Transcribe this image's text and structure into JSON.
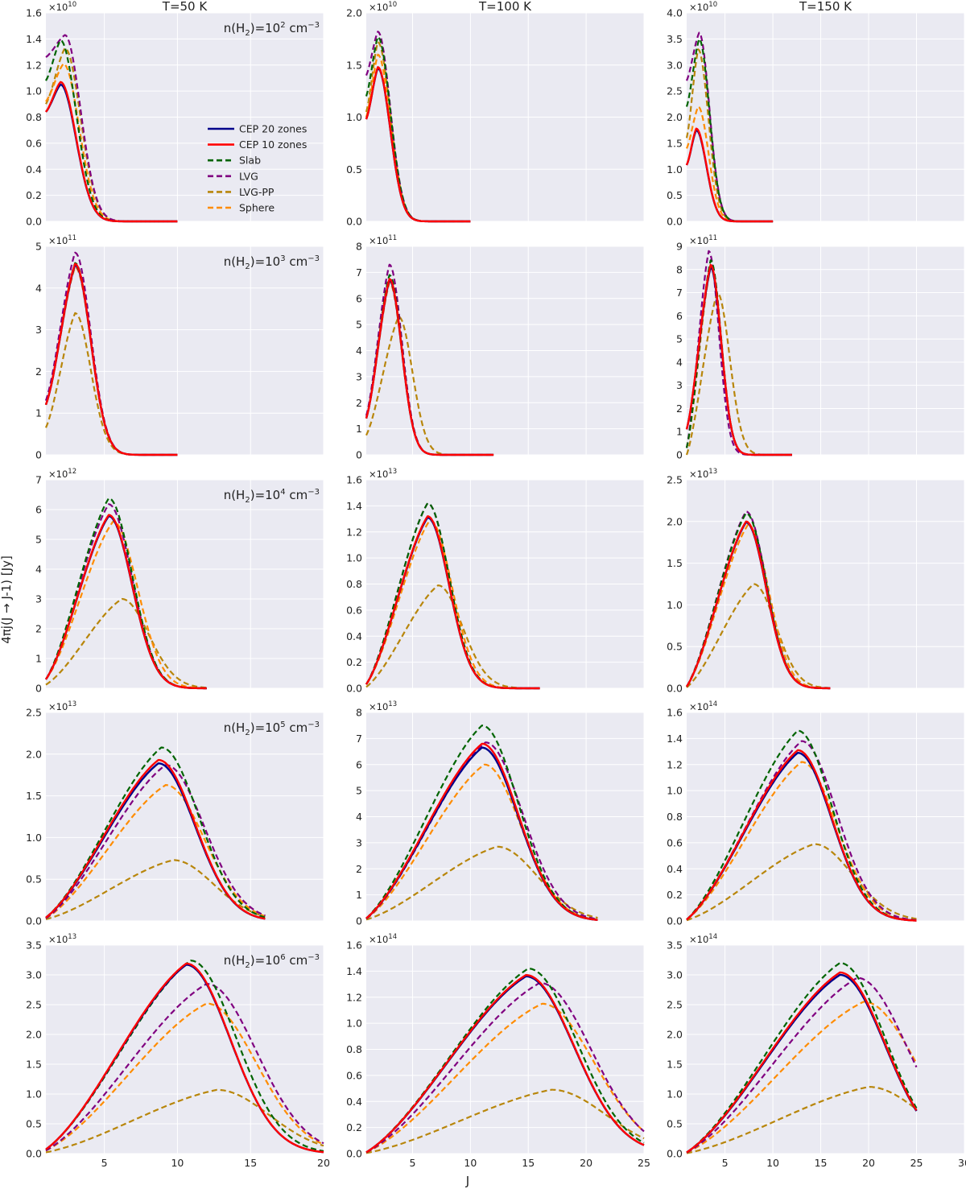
{
  "chart_data": {
    "type": "line",
    "figure": {
      "xlabel": "J",
      "ylabel": "4πj(J → J-1) [Jy]",
      "columns": [
        {
          "title": "T=50 K",
          "xlim": [
            1,
            20
          ],
          "xticks": [
            5,
            10,
            15,
            20
          ]
        },
        {
          "title": "T=100 K",
          "xlim": [
            1,
            25
          ],
          "xticks": [
            5,
            10,
            15,
            20,
            25
          ]
        },
        {
          "title": "T=150 K",
          "xlim": [
            1,
            30
          ],
          "xticks": [
            5,
            10,
            15,
            20,
            25,
            30
          ]
        }
      ],
      "rows": [
        {
          "annotation": {
            "prefix": "n(H",
            "sub": "2",
            "mid": ")=10",
            "sup": "2",
            "unit": " cm",
            "unit_sup": "−3"
          }
        },
        {
          "annotation": {
            "prefix": "n(H",
            "sub": "2",
            "mid": ")=10",
            "sup": "3",
            "unit": " cm",
            "unit_sup": "−3"
          }
        },
        {
          "annotation": {
            "prefix": "n(H",
            "sub": "2",
            "mid": ")=10",
            "sup": "4",
            "unit": " cm",
            "unit_sup": "−3"
          }
        },
        {
          "annotation": {
            "prefix": "n(H",
            "sub": "2",
            "mid": ")=10",
            "sup": "5",
            "unit": " cm",
            "unit_sup": "−3"
          }
        },
        {
          "annotation": {
            "prefix": "n(H",
            "sub": "2",
            "mid": ")=10",
            "sup": "6",
            "unit": " cm",
            "unit_sup": "−3"
          }
        }
      ],
      "legend": {
        "placement": "upper-right of top-left panel",
        "entries": [
          {
            "label": "CEP 20 zones",
            "color": "#00008b",
            "dash": false
          },
          {
            "label": "CEP 10 zones",
            "color": "#ff0000",
            "dash": false
          },
          {
            "label": "Slab",
            "color": "#006400",
            "dash": true
          },
          {
            "label": "LVG",
            "color": "#800080",
            "dash": true
          },
          {
            "label": "LVG-PP",
            "color": "#b8860b",
            "dash": true
          },
          {
            "label": "Sphere",
            "color": "#ff8c00",
            "dash": true
          }
        ]
      },
      "colors": {
        "panel_bg": "#eaeaf2",
        "grid": "#ffffff"
      }
    },
    "panels": [
      {
        "row": 0,
        "col": 0,
        "exponent": "10",
        "ylim": [
          0,
          1.6
        ],
        "yticks": [
          "0.0",
          "0.2",
          "0.4",
          "0.6",
          "0.8",
          "1.0",
          "1.2",
          "1.4",
          "1.6"
        ],
        "xmax": 10,
        "peaks": {
          "cep20": [
            2,
            1.05
          ],
          "cep10": [
            2,
            1.07
          ],
          "slab": [
            2,
            1.39
          ],
          "lvg": [
            2.3,
            1.43
          ],
          "lvgpp": [
            2.3,
            1.33
          ],
          "sphere": [
            2.2,
            1.21
          ]
        },
        "y1": {
          "cep20": 0.84,
          "cep10": 0.84,
          "slab": 1.08,
          "lvg": 1.26,
          "lvgpp": 0.9,
          "sphere": 0.92
        }
      },
      {
        "row": 0,
        "col": 1,
        "exponent": "10",
        "ylim": [
          0,
          2.0
        ],
        "yticks": [
          "0.0",
          "0.5",
          "1.0",
          "1.5",
          "2.0"
        ],
        "xmax": 10,
        "peaks": {
          "cep20": [
            2,
            1.47
          ],
          "cep10": [
            2,
            1.48
          ],
          "slab": [
            2,
            1.77
          ],
          "lvg": [
            2,
            1.82
          ],
          "lvgpp": [
            2,
            1.72
          ],
          "sphere": [
            2,
            1.6
          ]
        },
        "y1": {
          "cep20": 0.98,
          "cep10": 0.98,
          "slab": 1.2,
          "lvg": 1.4,
          "lvgpp": 1.05,
          "sphere": 1.0
        }
      },
      {
        "row": 0,
        "col": 2,
        "exponent": "10",
        "ylim": [
          0,
          4.0
        ],
        "yticks": [
          "0.0",
          "0.5",
          "1.0",
          "1.5",
          "2.0",
          "2.5",
          "3.0",
          "3.5",
          "4.0"
        ],
        "xmax": 10,
        "peaks": {
          "cep20": [
            2,
            1.75
          ],
          "cep10": [
            2,
            1.78
          ],
          "slab": [
            2.3,
            3.5
          ],
          "lvg": [
            2.3,
            3.62
          ],
          "lvgpp": [
            2.2,
            3.3
          ],
          "sphere": [
            2.2,
            2.2
          ]
        },
        "y1": {
          "cep20": 1.08,
          "cep10": 1.08,
          "slab": 2.2,
          "lvg": 2.7,
          "lvgpp": 1.6,
          "sphere": 1.4
        }
      },
      {
        "row": 1,
        "col": 0,
        "exponent": "11",
        "ylim": [
          0,
          5
        ],
        "yticks": [
          "0",
          "1",
          "2",
          "3",
          "4",
          "5"
        ],
        "xmax": 10,
        "peaks": {
          "cep20": [
            3,
            4.55
          ],
          "cep10": [
            3,
            4.58
          ],
          "slab": [
            3,
            4.6
          ],
          "lvg": [
            3,
            4.85
          ],
          "lvgpp": [
            3,
            3.4
          ],
          "sphere": [
            3,
            4.5
          ]
        },
        "y1": {
          "cep20": 1.2,
          "cep10": 1.2,
          "slab": 1.2,
          "lvg": 1.3,
          "lvgpp": 0.65,
          "sphere": 1.2
        }
      },
      {
        "row": 1,
        "col": 1,
        "exponent": "11",
        "ylim": [
          0,
          8
        ],
        "yticks": [
          "0",
          "1",
          "2",
          "3",
          "4",
          "5",
          "6",
          "7",
          "8"
        ],
        "xmax": 12,
        "peaks": {
          "cep20": [
            3,
            6.7
          ],
          "cep10": [
            3,
            6.75
          ],
          "slab": [
            3,
            6.9
          ],
          "lvg": [
            3,
            7.3
          ],
          "lvgpp": [
            3.8,
            5.3
          ],
          "sphere": [
            3,
            6.6
          ]
        },
        "y1": {
          "cep20": 1.4,
          "cep10": 1.4,
          "slab": 1.4,
          "lvg": 1.5,
          "lvgpp": 0.75,
          "sphere": 1.4
        }
      },
      {
        "row": 1,
        "col": 2,
        "exponent": "11",
        "ylim": [
          0,
          9
        ],
        "yticks": [
          "0",
          "1",
          "2",
          "3",
          "4",
          "5",
          "6",
          "7",
          "8",
          "9"
        ],
        "xmax": 12,
        "peaks": {
          "cep20": [
            3.5,
            8.1
          ],
          "cep10": [
            3.5,
            8.2
          ],
          "slab": [
            3.5,
            8.4
          ],
          "lvg": [
            3.3,
            8.8
          ],
          "lvgpp": [
            4.2,
            7.0
          ],
          "sphere": [
            3.5,
            8.1
          ]
        },
        "y1": {
          "cep20": 1.1,
          "cep10": 1.1,
          "slab": 0.3,
          "lvg": 0.3,
          "lvgpp": 0.0,
          "sphere": 0.3
        }
      },
      {
        "row": 2,
        "col": 0,
        "exponent": "12",
        "ylim": [
          0,
          7
        ],
        "yticks": [
          "0",
          "1",
          "2",
          "3",
          "4",
          "5",
          "6",
          "7"
        ],
        "xmax": 12,
        "peaks": {
          "cep20": [
            5.3,
            5.78
          ],
          "cep10": [
            5.3,
            5.82
          ],
          "slab": [
            5.3,
            6.38
          ],
          "lvg": [
            5.3,
            6.18
          ],
          "lvgpp": [
            6.2,
            3.0
          ],
          "sphere": [
            5.6,
            5.6
          ]
        },
        "y1": {
          "cep20": 0.3,
          "cep10": 0.3,
          "slab": 0.3,
          "lvg": 0.3,
          "lvgpp": 0.12,
          "sphere": 0.3
        }
      },
      {
        "row": 2,
        "col": 1,
        "exponent": "13",
        "ylim": [
          0,
          1.6
        ],
        "yticks": [
          "0.0",
          "0.2",
          "0.4",
          "0.6",
          "0.8",
          "1.0",
          "1.2",
          "1.4",
          "1.6"
        ],
        "xmax": 16,
        "peaks": {
          "cep20": [
            6.3,
            1.31
          ],
          "cep10": [
            6.3,
            1.32
          ],
          "slab": [
            6.3,
            1.42
          ],
          "lvg": [
            6.3,
            1.42
          ],
          "lvgpp": [
            7.2,
            0.79
          ],
          "sphere": [
            6.5,
            1.29
          ]
        },
        "y1": {
          "cep20": 0.03,
          "cep10": 0.03,
          "slab": 0.03,
          "lvg": 0.03,
          "lvgpp": 0.01,
          "sphere": 0.03
        }
      },
      {
        "row": 2,
        "col": 2,
        "exponent": "13",
        "ylim": [
          0,
          2.5
        ],
        "yticks": [
          "0.0",
          "0.5",
          "1.0",
          "1.5",
          "2.0",
          "2.5"
        ],
        "xmax": 16,
        "peaks": {
          "cep20": [
            7.2,
            1.99
          ],
          "cep10": [
            7.2,
            2.0
          ],
          "slab": [
            7.2,
            2.1
          ],
          "lvg": [
            7.2,
            2.12
          ],
          "lvgpp": [
            8,
            1.25
          ],
          "sphere": [
            7.4,
            1.96
          ]
        },
        "y1": {
          "cep20": 0.02,
          "cep10": 0.02,
          "slab": 0.02,
          "lvg": 0.02,
          "lvgpp": 0.01,
          "sphere": 0.02
        }
      },
      {
        "row": 3,
        "col": 0,
        "exponent": "13",
        "ylim": [
          0,
          2.5
        ],
        "yticks": [
          "0.0",
          "0.5",
          "1.0",
          "1.5",
          "2.0",
          "2.5"
        ],
        "xmax": 16,
        "peaks": {
          "cep20": [
            8.7,
            1.89
          ],
          "cep10": [
            8.7,
            1.93
          ],
          "slab": [
            8.9,
            2.08
          ],
          "lvg": [
            9.2,
            1.87
          ],
          "lvgpp": [
            9.7,
            0.73
          ],
          "sphere": [
            9.2,
            1.63
          ]
        },
        "y1": {
          "cep20": 0.04,
          "cep10": 0.04,
          "slab": 0.04,
          "lvg": 0.03,
          "lvgpp": 0.02,
          "sphere": 0.03
        }
      },
      {
        "row": 3,
        "col": 1,
        "exponent": "13",
        "ylim": [
          0,
          8
        ],
        "yticks": [
          "0",
          "1",
          "2",
          "3",
          "4",
          "5",
          "6",
          "7",
          "8"
        ],
        "xmax": 21,
        "peaks": {
          "cep20": [
            11,
            6.65
          ],
          "cep10": [
            11,
            6.8
          ],
          "slab": [
            11,
            7.5
          ],
          "lvg": [
            11.3,
            6.85
          ],
          "lvgpp": [
            12.3,
            2.85
          ],
          "sphere": [
            11.2,
            6.0
          ]
        },
        "y1": {
          "cep20": 0.1,
          "cep10": 0.1,
          "slab": 0.1,
          "lvg": 0.08,
          "lvgpp": 0.05,
          "sphere": 0.08
        }
      },
      {
        "row": 3,
        "col": 2,
        "exponent": "14",
        "ylim": [
          0,
          1.6
        ],
        "yticks": [
          "0.0",
          "0.2",
          "0.4",
          "0.6",
          "0.8",
          "1.0",
          "1.2",
          "1.4",
          "1.6"
        ],
        "xmax": 25,
        "peaks": {
          "cep20": [
            12.6,
            1.29
          ],
          "cep10": [
            12.6,
            1.31
          ],
          "slab": [
            12.6,
            1.46
          ],
          "lvg": [
            13,
            1.38
          ],
          "lvgpp": [
            14.3,
            0.59
          ],
          "sphere": [
            13,
            1.22
          ]
        },
        "y1": {
          "cep20": 0.01,
          "cep10": 0.01,
          "slab": 0.01,
          "lvg": 0.01,
          "lvgpp": 0.005,
          "sphere": 0.01
        }
      },
      {
        "row": 4,
        "col": 0,
        "exponent": "13",
        "ylim": [
          0,
          3.5
        ],
        "yticks": [
          "0.0",
          "0.5",
          "1.0",
          "1.5",
          "2.0",
          "2.5",
          "3.0",
          "3.5"
        ],
        "xmax": 20,
        "peaks": {
          "cep20": [
            10.6,
            3.17
          ],
          "cep10": [
            10.6,
            3.19
          ],
          "slab": [
            10.9,
            3.24
          ],
          "lvg": [
            12,
            2.85
          ],
          "lvgpp": [
            12.7,
            1.07
          ],
          "sphere": [
            12,
            2.52
          ]
        },
        "y1": {
          "cep20": 0.07,
          "cep10": 0.07,
          "slab": 0.07,
          "lvg": 0.05,
          "lvgpp": 0.02,
          "sphere": 0.05
        }
      },
      {
        "row": 4,
        "col": 1,
        "exponent": "14",
        "ylim": [
          0,
          1.6
        ],
        "yticks": [
          "0.0",
          "0.2",
          "0.4",
          "0.6",
          "0.8",
          "1.0",
          "1.2",
          "1.4",
          "1.6"
        ],
        "xmax": 25,
        "peaks": {
          "cep20": [
            14.8,
            1.36
          ],
          "cep10": [
            14.8,
            1.37
          ],
          "slab": [
            15,
            1.42
          ],
          "lvg": [
            16,
            1.31
          ],
          "lvgpp": [
            17,
            0.49
          ],
          "sphere": [
            16.2,
            1.15
          ]
        },
        "y1": {
          "cep20": 0.01,
          "cep10": 0.01,
          "slab": 0.01,
          "lvg": 0.008,
          "lvgpp": 0.004,
          "sphere": 0.008
        }
      },
      {
        "row": 4,
        "col": 2,
        "exponent": "14",
        "ylim": [
          0,
          3.5
        ],
        "yticks": [
          "0.0",
          "0.5",
          "1.0",
          "1.5",
          "2.0",
          "2.5",
          "3.0",
          "3.5"
        ],
        "xmax": 25,
        "peaks": {
          "cep20": [
            17,
            3.0
          ],
          "cep10": [
            17,
            3.04
          ],
          "slab": [
            17,
            3.2
          ],
          "lvg": [
            18.8,
            2.95
          ],
          "lvgpp": [
            20,
            1.12
          ],
          "sphere": [
            19.5,
            2.55
          ]
        },
        "y1": {
          "cep20": 0.02,
          "cep10": 0.02,
          "slab": 0.02,
          "lvg": 0.015,
          "lvgpp": 0.006,
          "sphere": 0.015
        }
      }
    ]
  }
}
